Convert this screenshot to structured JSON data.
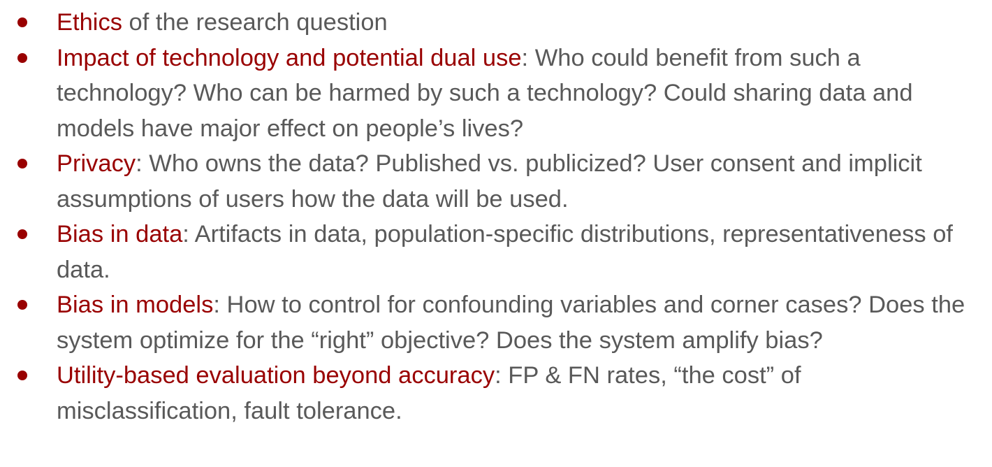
{
  "colors": {
    "accent": "#990000",
    "body_text": "#595959",
    "bullet": "#990000"
  },
  "bullets": [
    {
      "term": "Ethics",
      "separator": "",
      "desc": " of the research question"
    },
    {
      "term": "Impact of technology and potential dual use",
      "separator": ":",
      "desc": " Who could benefit from such a technology? Who can be harmed by such a technology? Could sharing data and models have major effect on people’s lives?"
    },
    {
      "term": "Privacy",
      "separator": ":",
      "desc": " Who owns the data? Published vs. publicized? User consent and implicit assumptions of users how the data will be used."
    },
    {
      "term": "Bias in data",
      "separator": ":",
      "desc": " Artifacts in data, population-specific distributions, representativeness of data."
    },
    {
      "term": "Bias in models",
      "separator": ":",
      "desc": " How to control for confounding variables and corner cases? Does the system optimize for the “right” objective? Does the system amplify bias?"
    },
    {
      "term": "Utility-based evaluation beyond accuracy",
      "separator": ":",
      "desc": " FP & FN rates, “the cost” of misclassification, fault tolerance."
    }
  ]
}
